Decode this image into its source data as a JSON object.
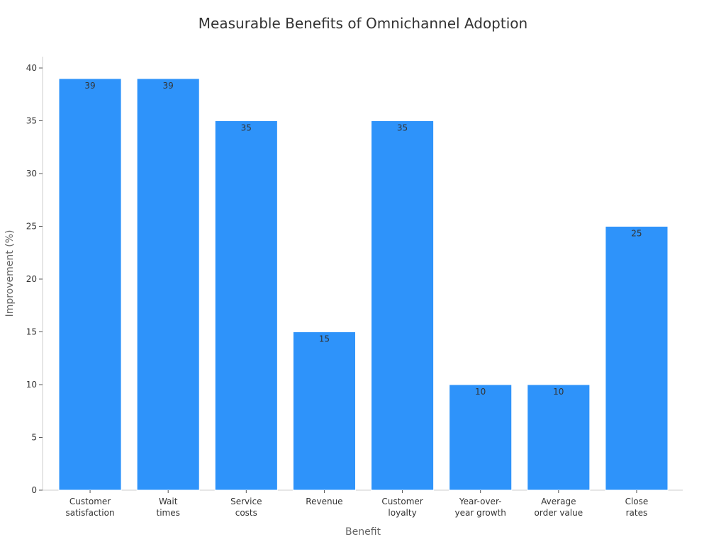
{
  "chart_data": {
    "type": "bar",
    "title": "Measurable Benefits of Omnichannel Adoption",
    "xlabel": "Benefit",
    "ylabel": "Improvement (%)",
    "categories": [
      [
        "Customer",
        "satisfaction"
      ],
      [
        "Wait",
        "times"
      ],
      [
        "Service",
        "costs"
      ],
      [
        "Revenue"
      ],
      [
        "Customer",
        "loyalty"
      ],
      [
        "Year-over-",
        "year growth"
      ],
      [
        "Average",
        "order value"
      ],
      [
        "Close",
        "rates"
      ]
    ],
    "values": [
      39,
      39,
      35,
      15,
      35,
      10,
      10,
      25
    ],
    "ylim": [
      0,
      40
    ],
    "yticks": [
      0,
      5,
      10,
      15,
      20,
      25,
      30,
      35,
      40
    ],
    "grid": false,
    "bar_color": "#2e93fa",
    "bar_stroke": "#ffffff"
  }
}
